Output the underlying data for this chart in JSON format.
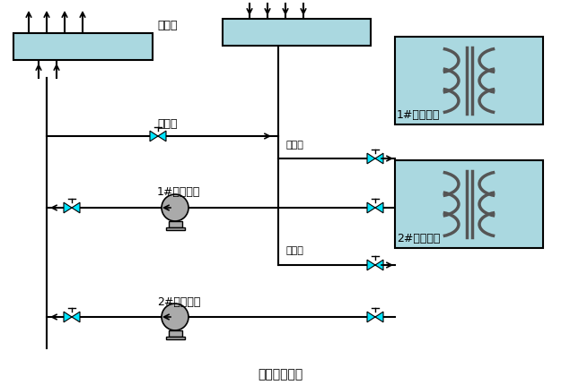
{
  "bg_color": "#ffffff",
  "pipe_color": "#000000",
  "header_fill": "#aad8e0",
  "header_edge": "#000000",
  "ac_unit_fill": "#aad8e0",
  "ac_unit_edge": "#000000",
  "valve_color": "#00e5ff",
  "pump_color": "#aaaaaa",
  "label_color": "#000000",
  "title": "冷冻水管网图",
  "header1_label": "集水管",
  "bypass_label": "旁通阀",
  "pump1_label": "1#冷冻水泵",
  "pump2_label": "2#冷冻水泵",
  "ac1_label": "1#空调机组",
  "ac2_label": "2#空调机组",
  "cold_water1_label": "冷冻水",
  "cold_water2_label": "冷冻水"
}
